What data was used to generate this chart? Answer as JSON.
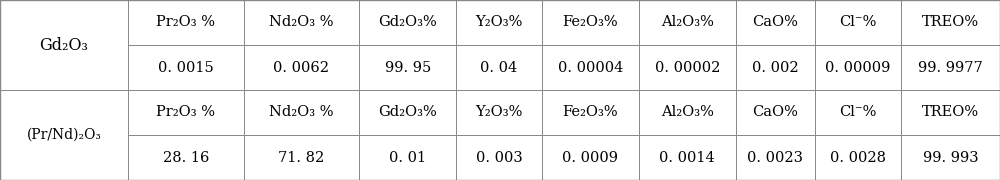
{
  "row_labels": [
    "Gd₂O₃",
    "(Pr/Nd)₂O₃"
  ],
  "col_headers": [
    "Pr₂O₃ %",
    "Nd₂O₃ %",
    "Gd₂O₃%",
    "Y₂O₃%",
    "Fe₂O₃%",
    "Al₂O₃%",
    "CaO%",
    "Cl⁻%",
    "TREO%"
  ],
  "data_rows": [
    [
      "0. 0015",
      "0. 0062",
      "99. 95",
      "0. 04",
      "0. 00004",
      "0. 00002",
      "0. 002",
      "0. 00009",
      "99. 9977"
    ],
    [
      "28. 16",
      "71. 82",
      "0. 01",
      "0. 003",
      "0. 0009",
      "0. 0014",
      "0. 0023",
      "0. 0028",
      "99. 993"
    ]
  ],
  "background_color": "#ffffff",
  "line_color": "#888888",
  "text_color": "#000000",
  "header_fontsize": 10.5,
  "data_fontsize": 10.5,
  "row_label_fontsize": 11.5
}
